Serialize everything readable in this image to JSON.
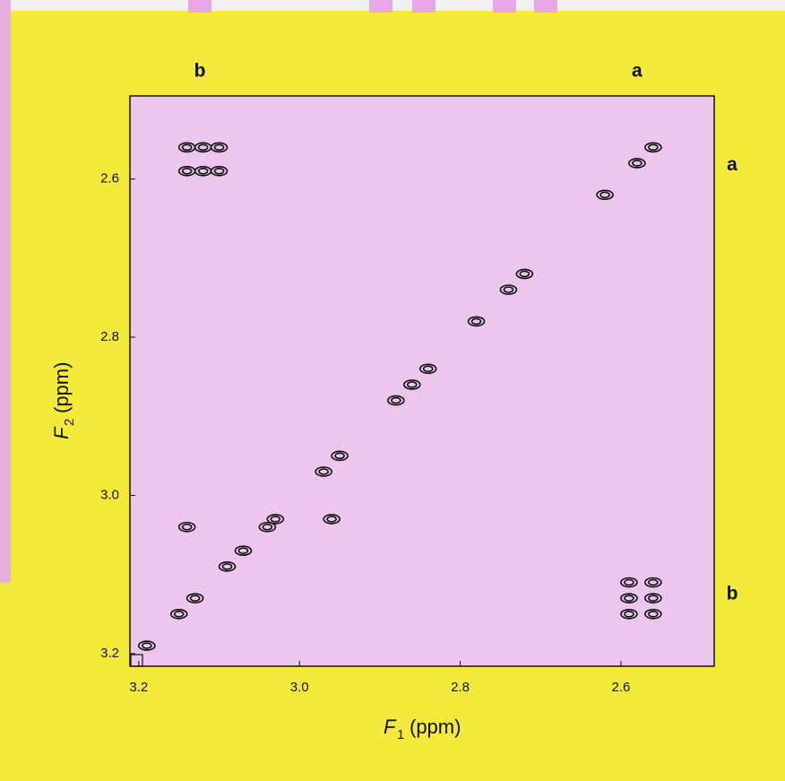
{
  "chart_data": {
    "type": "contour",
    "xlabel": {
      "symbol": "F",
      "subscript": "1",
      "unit": "(ppm)"
    },
    "ylabel": {
      "symbol": "F",
      "subscript": "2",
      "unit": "(ppm)"
    },
    "xlim": [
      3.211,
      2.484
    ],
    "ylim": [
      3.216,
      2.495
    ],
    "xticks": [
      3.2,
      {
        "value": 3,
        "label": "3.0"
      },
      2.8,
      2.6
    ],
    "yticks": [
      2.6,
      2.8,
      {
        "value": 3,
        "label": "3.0"
      },
      3.2
    ],
    "color": "#111111",
    "x": [
      3.19,
      3.15,
      3.13,
      3.09,
      3.07,
      3.04,
      3.03,
      2.97,
      2.95,
      2.88,
      2.86,
      2.84,
      2.78,
      2.74,
      2.72,
      2.62,
      2.58,
      2.56,
      3.14,
      3.12,
      3.1,
      3.14,
      3.12,
      3.1,
      2.59,
      2.56,
      2.59,
      2.56,
      2.59,
      2.56,
      3.14,
      2.96
    ],
    "y": [
      3.19,
      3.15,
      3.13,
      3.09,
      3.07,
      3.04,
      3.03,
      2.97,
      2.95,
      2.88,
      2.86,
      2.84,
      2.78,
      2.74,
      2.72,
      2.62,
      2.58,
      2.56,
      2.56,
      2.56,
      2.56,
      2.59,
      2.59,
      2.59,
      3.11,
      3.11,
      3.13,
      3.13,
      3.15,
      3.15,
      3.04,
      3.03
    ],
    "annotations": [
      {
        "text": "b",
        "x": 3.124
      },
      {
        "text": "a",
        "x": 2.58
      },
      {
        "text": "a",
        "y": 2.583
      },
      {
        "text": "b",
        "y": 3.125
      }
    ]
  }
}
